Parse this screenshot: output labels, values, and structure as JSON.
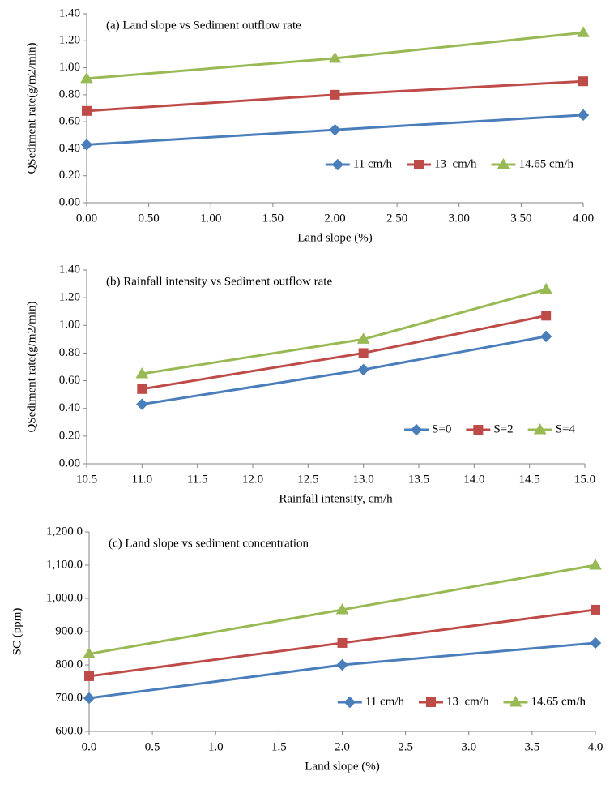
{
  "chart_data": [
    {
      "type": "line",
      "title": "(a) Land slope vs Sediment outflow rate",
      "x_label": "Land slope (%)",
      "y_label": "QSediment rate(g/m2/min)",
      "x": [
        0,
        2,
        4
      ],
      "xlim": [
        0,
        4
      ],
      "xticks": [
        {
          "value": 0,
          "label": "0.00"
        },
        {
          "value": 0.5,
          "label": "0.50"
        },
        {
          "value": 1,
          "label": "1.00"
        },
        {
          "value": 1.5,
          "label": "1.50"
        },
        {
          "value": 2,
          "label": "2.00"
        },
        {
          "value": 2.5,
          "label": "2.50"
        },
        {
          "value": 3,
          "label": "3.00"
        },
        {
          "value": 3.5,
          "label": "3.50"
        },
        {
          "value": 4,
          "label": "4.00"
        }
      ],
      "ylim": [
        0,
        1.4
      ],
      "yticks": [
        {
          "value": 0,
          "label": "0.00"
        },
        {
          "value": 0.2,
          "label": "0.20"
        },
        {
          "value": 0.4,
          "label": "0.40"
        },
        {
          "value": 0.6,
          "label": "0.60"
        },
        {
          "value": 0.8,
          "label": "0.80"
        },
        {
          "value": 1,
          "label": "1.00"
        },
        {
          "value": 1.2,
          "label": "1.20"
        },
        {
          "value": 1.4,
          "label": "1.40"
        }
      ],
      "legend": "lower right",
      "series": [
        {
          "name": "11 cm/h",
          "color": "#4a7ebb",
          "marker": "diamond",
          "values": [
            0.43,
            0.54,
            0.65
          ]
        },
        {
          "name": "13  cm/h",
          "color": "#be4b48",
          "marker": "square",
          "values": [
            0.68,
            0.8,
            0.9
          ]
        },
        {
          "name": "14.65 cm/h",
          "color": "#98b954",
          "marker": "triangle",
          "values": [
            0.92,
            1.07,
            1.26
          ]
        }
      ]
    },
    {
      "type": "line",
      "title": "(b) Rainfall intensity vs Sediment outflow rate",
      "x_label": "Rainfall intensity, cm/h",
      "y_label": "QSediment rate(g/m2/min)",
      "x": [
        11,
        13,
        14.65
      ],
      "xlim": [
        10.5,
        15
      ],
      "xticks": [
        10.5,
        {
          "value": 11,
          "label": "11.0"
        },
        11.5,
        {
          "value": 12,
          "label": "12.0"
        },
        12.5,
        {
          "value": 13,
          "label": "13.0"
        },
        13.5,
        {
          "value": 14,
          "label": "14.0"
        },
        14.5,
        {
          "value": 15,
          "label": "15.0"
        }
      ],
      "ylim": [
        0,
        1.4
      ],
      "yticks": [
        {
          "value": 0,
          "label": "0.00"
        },
        {
          "value": 0.2,
          "label": "0.20"
        },
        {
          "value": 0.4,
          "label": "0.40"
        },
        {
          "value": 0.6,
          "label": "0.60"
        },
        {
          "value": 0.8,
          "label": "0.80"
        },
        {
          "value": 1,
          "label": "1.00"
        },
        {
          "value": 1.2,
          "label": "1.20"
        },
        {
          "value": 1.4,
          "label": "1.40"
        }
      ],
      "legend": "lower right",
      "series": [
        {
          "name": "S=0",
          "color": "#4a7ebb",
          "marker": "diamond",
          "values": [
            0.43,
            0.68,
            0.92
          ]
        },
        {
          "name": "S=2",
          "color": "#be4b48",
          "marker": "square",
          "values": [
            0.54,
            0.8,
            1.07
          ]
        },
        {
          "name": "S=4",
          "color": "#98b954",
          "marker": "triangle",
          "values": [
            0.65,
            0.9,
            1.26
          ]
        }
      ]
    },
    {
      "type": "line",
      "title": "(c) Land slope vs sediment concentration",
      "x_label": "Land slope (%)",
      "y_label": "SC (ppm)",
      "x": [
        0,
        2,
        4
      ],
      "xlim": [
        0,
        4
      ],
      "xticks": [
        {
          "value": 0,
          "label": "0.0"
        },
        0.5,
        {
          "value": 1,
          "label": "1.0"
        },
        1.5,
        {
          "value": 2,
          "label": "2.0"
        },
        2.5,
        {
          "value": 3,
          "label": "3.0"
        },
        3.5,
        {
          "value": 4,
          "label": "4.0"
        }
      ],
      "ylim": [
        600,
        1200
      ],
      "yticks": [
        {
          "value": 600,
          "label": "600.0"
        },
        {
          "value": 700,
          "label": "700.0"
        },
        {
          "value": 800,
          "label": "800.0"
        },
        {
          "value": 900,
          "label": "900.0"
        },
        {
          "value": 1000,
          "label": "1,000.0"
        },
        {
          "value": 1100,
          "label": "1,100.0"
        },
        {
          "value": 1200,
          "label": "1,200.0"
        }
      ],
      "legend": "lower right",
      "series": [
        {
          "name": "11 cm/h",
          "color": "#4a7ebb",
          "marker": "diamond",
          "values": [
            700,
            800,
            866
          ]
        },
        {
          "name": "13  cm/h",
          "color": "#be4b48",
          "marker": "square",
          "values": [
            766,
            866,
            966
          ]
        },
        {
          "name": "14.65 cm/h",
          "color": "#98b954",
          "marker": "triangle",
          "values": [
            833,
            966,
            1100
          ]
        }
      ]
    }
  ]
}
